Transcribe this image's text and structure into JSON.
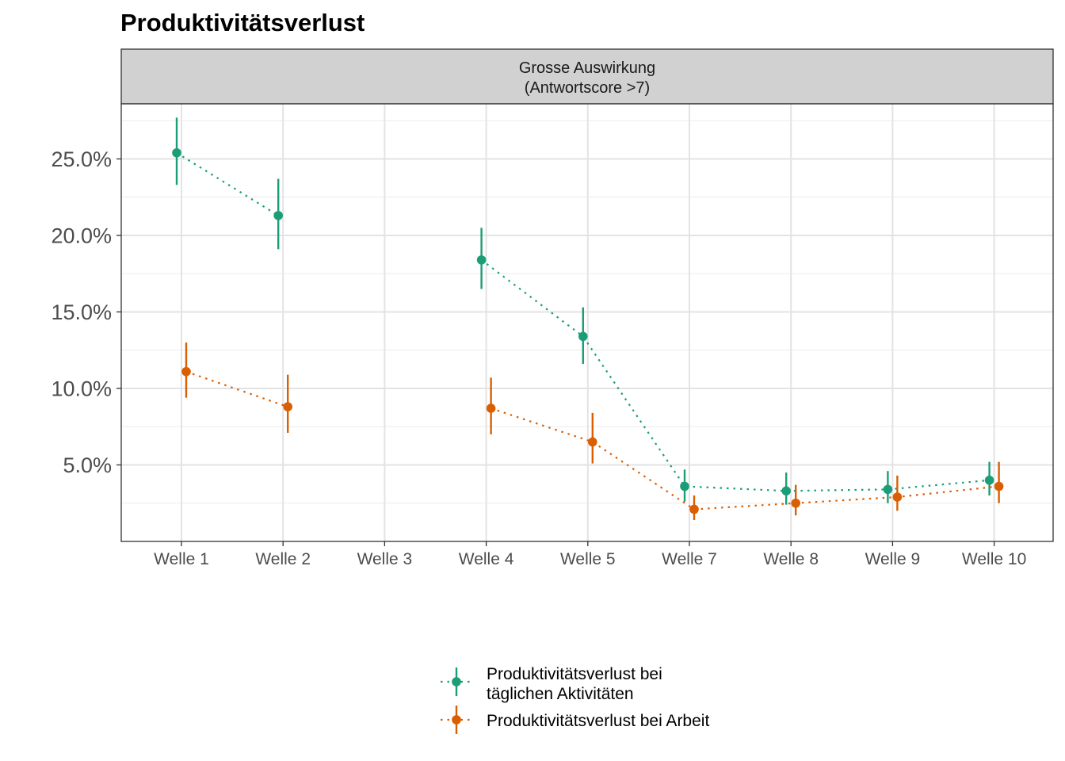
{
  "chart_data": {
    "type": "line",
    "title": "Produktivitätsverlust",
    "facet_label": [
      "Grosse Auswirkung",
      "(Antwortscore >7)"
    ],
    "xlabel": "",
    "ylabel": "",
    "categories": [
      "Welle 1",
      "Welle 2",
      "Welle 3",
      "Welle 4",
      "Welle 5",
      "Welle 7",
      "Welle 8",
      "Welle 9",
      "Welle 10"
    ],
    "ylim": [
      0.0,
      0.286
    ],
    "yticks": [
      0.05,
      0.1,
      0.15,
      0.2,
      0.25
    ],
    "ytick_labels": [
      "5.0%",
      "10.0%",
      "15.0%",
      "20.0%",
      "25.0%"
    ],
    "grid": true,
    "legend_position": "bottom",
    "series": [
      {
        "name": "Produktivitätsverlust bei täglichen Aktivitäten",
        "legend_lines": [
          "Produktivitätsverlust bei",
          "täglichen Aktivitäten"
        ],
        "color": "#1B9E77",
        "values": [
          0.254,
          0.213,
          null,
          0.184,
          0.134,
          0.036,
          0.033,
          0.034,
          0.04
        ],
        "lower": [
          0.233,
          0.191,
          null,
          0.165,
          0.116,
          0.026,
          0.024,
          0.025,
          0.03
        ],
        "upper": [
          0.277,
          0.237,
          null,
          0.205,
          0.153,
          0.047,
          0.045,
          0.046,
          0.052
        ]
      },
      {
        "name": "Produktivitätsverlust bei Arbeit",
        "legend_lines": [
          "Produktivitätsverlust bei Arbeit"
        ],
        "color": "#D95F02",
        "values": [
          0.111,
          0.088,
          null,
          0.087,
          0.065,
          0.021,
          0.025,
          0.029,
          0.036
        ],
        "lower": [
          0.094,
          0.071,
          null,
          0.07,
          0.051,
          0.014,
          0.017,
          0.02,
          0.025
        ],
        "upper": [
          0.13,
          0.109,
          null,
          0.107,
          0.084,
          0.03,
          0.037,
          0.043,
          0.052
        ]
      }
    ]
  }
}
